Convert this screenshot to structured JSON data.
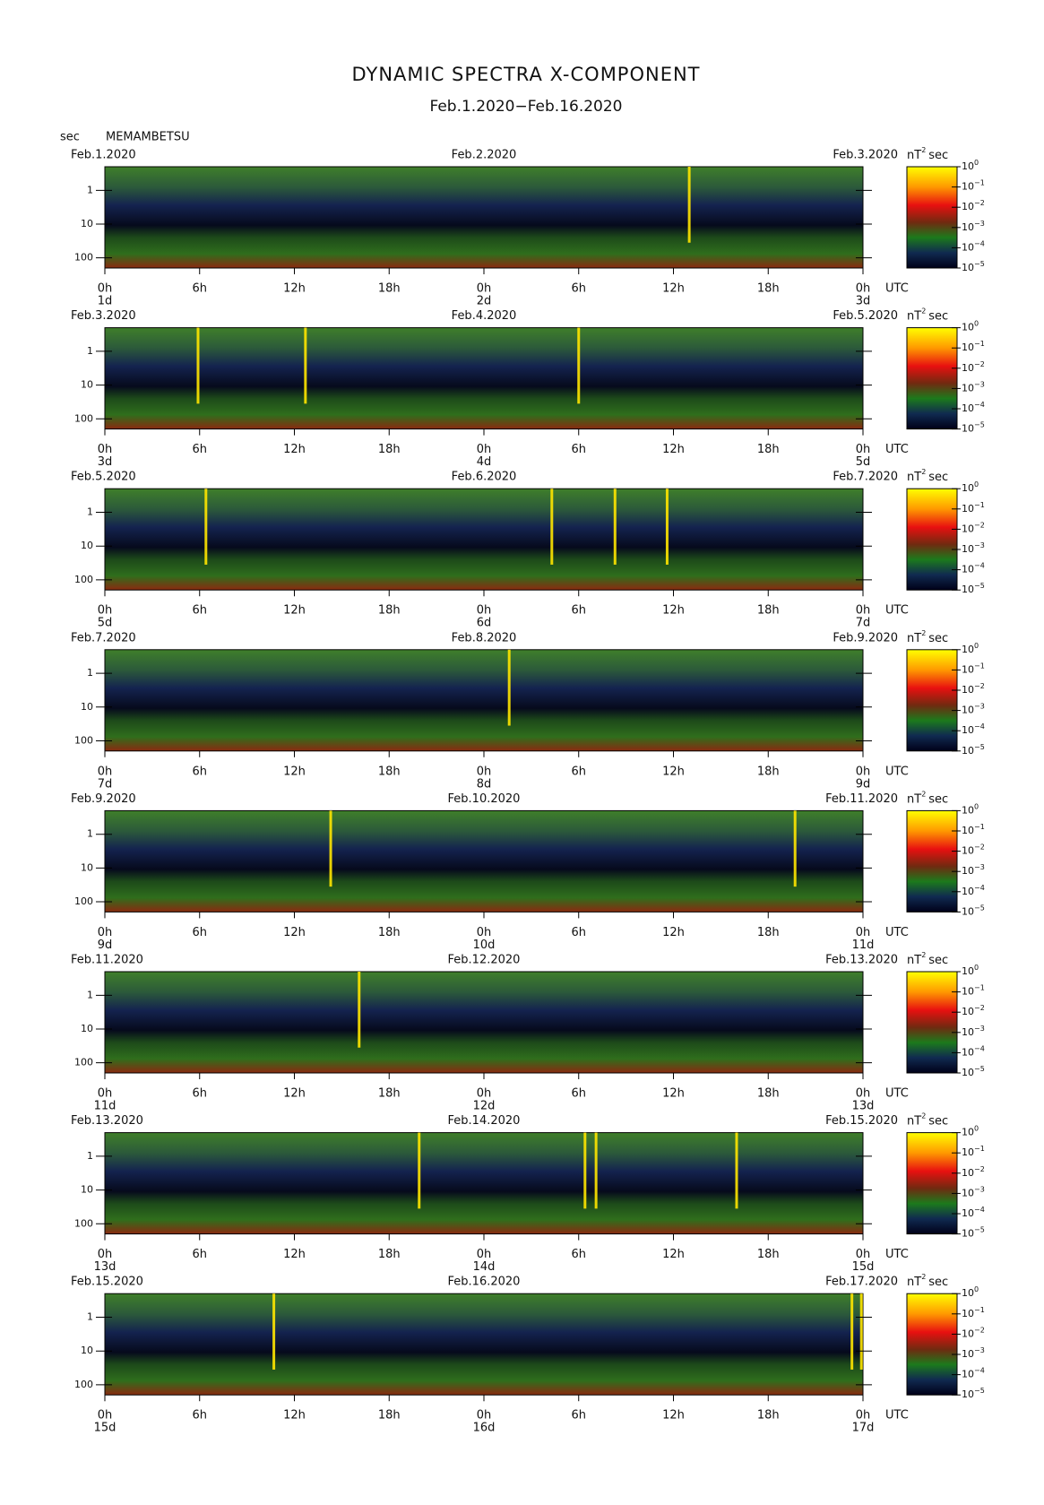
{
  "chart_data": {
    "type": "spectrogram",
    "title": "DYNAMIC SPECTRA X-COMPONENT",
    "subtitle": "Feb.1.2020−Feb.16.2020",
    "y_unit": "sec",
    "station": "MEMAMBETSU",
    "colorbar_unit": {
      "base": "nT",
      "exp": "2",
      "tail": "sec"
    },
    "colorbar_base": "10",
    "colorbar_exponents": [
      "0",
      "−1",
      "−2",
      "−3",
      "−4",
      "−5"
    ],
    "x_unit": "UTC",
    "xlim": [
      0,
      48
    ],
    "xticks": [
      {
        "value": 0,
        "label": "0h"
      },
      {
        "value": 6,
        "label": "6h"
      },
      {
        "value": 12,
        "label": "12h"
      },
      {
        "value": 18,
        "label": "18h"
      },
      {
        "value": 24,
        "label": "0h"
      },
      {
        "value": 30,
        "label": "6h"
      },
      {
        "value": 36,
        "label": "12h"
      },
      {
        "value": 42,
        "label": "18h"
      },
      {
        "value": 48,
        "label": "0h"
      }
    ],
    "ylim": [
      0.2,
      200
    ],
    "yticks": [
      1,
      10,
      100
    ],
    "log_y": true,
    "burst_color": "#ffe600",
    "panels": [
      {
        "dates": [
          "Feb.1.2020",
          "Feb.2.2020",
          "Feb.3.2020"
        ],
        "days": [
          "1d",
          "2d",
          "3d"
        ],
        "bursts": [
          37
        ]
      },
      {
        "dates": [
          "Feb.3.2020",
          "Feb.4.2020",
          "Feb.5.2020"
        ],
        "days": [
          "3d",
          "4d",
          "5d"
        ],
        "bursts": [
          5.9,
          12.7,
          30
        ]
      },
      {
        "dates": [
          "Feb.5.2020",
          "Feb.6.2020",
          "Feb.7.2020"
        ],
        "days": [
          "5d",
          "6d",
          "7d"
        ],
        "bursts": [
          6.4,
          28.3,
          32.3,
          35.6
        ]
      },
      {
        "dates": [
          "Feb.7.2020",
          "Feb.8.2020",
          "Feb.9.2020"
        ],
        "days": [
          "7d",
          "8d",
          "9d"
        ],
        "bursts": [
          25.6
        ]
      },
      {
        "dates": [
          "Feb.9.2020",
          "Feb.10.2020",
          "Feb.11.2020"
        ],
        "days": [
          "9d",
          "10d",
          "11d"
        ],
        "bursts": [
          14.3,
          43.7
        ]
      },
      {
        "dates": [
          "Feb.11.2020",
          "Feb.12.2020",
          "Feb.13.2020"
        ],
        "days": [
          "11d",
          "12d",
          "13d"
        ],
        "bursts": [
          16.1
        ]
      },
      {
        "dates": [
          "Feb.13.2020",
          "Feb.14.2020",
          "Feb.15.2020"
        ],
        "days": [
          "13d",
          "14d",
          "15d"
        ],
        "bursts": [
          19.9,
          30.4,
          31.1,
          40
        ]
      },
      {
        "dates": [
          "Feb.15.2020",
          "Feb.16.2020",
          "Feb.17.2020"
        ],
        "days": [
          "15d",
          "16d",
          "17d"
        ],
        "bursts": [
          10.7,
          47.3,
          47.9
        ]
      }
    ]
  }
}
